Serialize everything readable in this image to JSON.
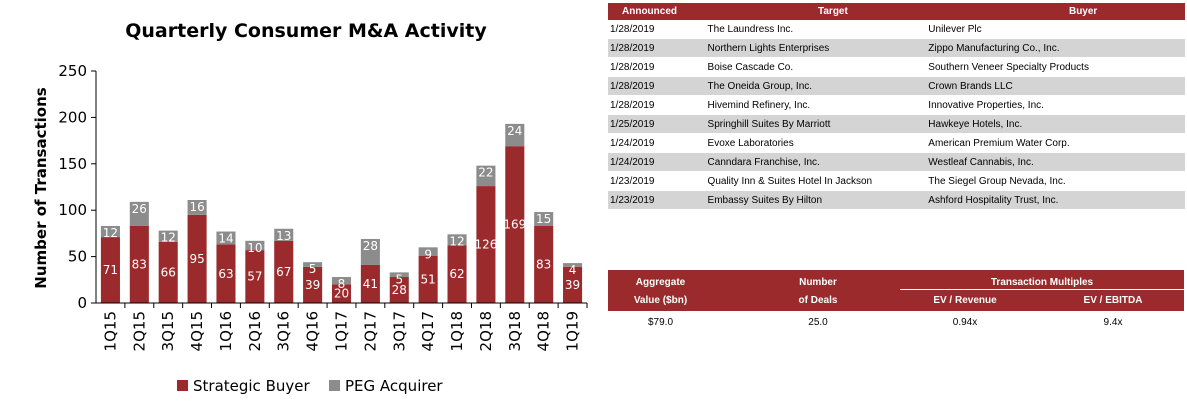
{
  "chart_data": {
    "type": "bar",
    "stacked": true,
    "title": "Quarterly Consumer M&A Activity",
    "xlabel": "",
    "ylabel": "Number of Transactions",
    "ylim": [
      0,
      250
    ],
    "yticks": [
      0,
      50,
      100,
      150,
      200,
      250
    ],
    "grid": false,
    "legend_position": "bottom",
    "categories": [
      "1Q15",
      "2Q15",
      "3Q15",
      "4Q15",
      "1Q16",
      "2Q16",
      "3Q16",
      "4Q16",
      "1Q17",
      "2Q17",
      "3Q17",
      "4Q17",
      "1Q18",
      "2Q18",
      "3Q18",
      "4Q18",
      "1Q19"
    ],
    "series": [
      {
        "name": "Strategic Buyer",
        "color": "#9b2a2d",
        "values": [
          71,
          83,
          66,
          95,
          63,
          57,
          67,
          39,
          20,
          41,
          28,
          51,
          62,
          126,
          169,
          83,
          39
        ]
      },
      {
        "name": "PEG Acquirer",
        "color": "#8c8c8c",
        "values": [
          12,
          26,
          12,
          16,
          14,
          10,
          13,
          5,
          8,
          28,
          5,
          9,
          12,
          22,
          24,
          15,
          4
        ]
      }
    ]
  },
  "deals_table": {
    "headers": [
      "Announced",
      "Target",
      "Buyer"
    ],
    "rows": [
      [
        "1/28/2019",
        "The Laundress Inc.",
        "Unilever Plc"
      ],
      [
        "1/28/2019",
        "Northern Lights Enterprises",
        "Zippo Manufacturing Co., Inc."
      ],
      [
        "1/28/2019",
        "Boise Cascade Co.",
        "Southern Veneer Specialty Products"
      ],
      [
        "1/28/2019",
        "The Oneida Group, Inc.",
        "Crown Brands LLC"
      ],
      [
        "1/28/2019",
        "Hivemind Refinery, Inc.",
        "Innovative Properties, Inc."
      ],
      [
        "1/25/2019",
        "Springhill Suites By Marriott",
        "Hawkeye Hotels, Inc."
      ],
      [
        "1/24/2019",
        "Evoxe Laboratories",
        "American Premium Water Corp."
      ],
      [
        "1/24/2019",
        "Canndara Franchise, Inc.",
        "Westleaf Cannabis, Inc."
      ],
      [
        "1/23/2019",
        "Quality Inn & Suites Hotel In Jackson",
        "The Siegel Group Nevada, Inc."
      ],
      [
        "1/23/2019",
        "Embassy Suites By Hilton",
        "Ashford Hospitality Trust, Inc."
      ]
    ]
  },
  "summary": {
    "aggregate_line1": "Aggregate",
    "aggregate_line2": "Value ($bn)",
    "deals_line1": "Number",
    "deals_line2": "of Deals",
    "multiples_header": "Transaction Multiples",
    "ev_revenue_header": "EV / Revenue",
    "ev_ebitda_header": "EV / EBITDA",
    "aggregate_value": "$79.0",
    "number_of_deals": "25.0",
    "ev_revenue": "0.94x",
    "ev_ebitda": "9.4x"
  },
  "colors": {
    "accent": "#9b2a2d",
    "peg": "#8c8c8c",
    "stripe": "#d4d4d4"
  }
}
